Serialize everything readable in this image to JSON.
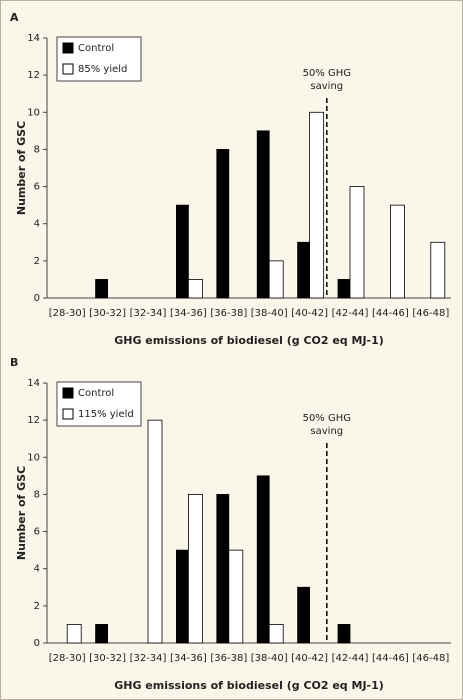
{
  "chart_data": [
    {
      "type": "bar",
      "panel": "A",
      "ylabel": "Number of GSC",
      "xlabel": "GHG emissions of biodiesel (g CO2 eq MJ-1)",
      "categories": [
        "[28-30]",
        "[30-32]",
        "[32-34]",
        "[34-36]",
        "[36-38]",
        "[38-40]",
        "[40-42]",
        "[42-44]",
        "[44-46]",
        "[46-48]"
      ],
      "series": [
        {
          "name": "Control",
          "color": "#000000",
          "values": [
            0,
            1,
            0,
            5,
            8,
            9,
            3,
            1,
            0,
            0
          ]
        },
        {
          "name": "85% yield",
          "color": "#ffffff",
          "values": [
            0,
            0,
            0,
            1,
            0,
            2,
            10,
            6,
            5,
            3
          ]
        }
      ],
      "ylim": [
        0,
        14
      ],
      "yticks": [
        0,
        2,
        4,
        6,
        8,
        10,
        12,
        14
      ],
      "annotation": [
        "50% GHG",
        "saving"
      ],
      "legend": "upper left"
    },
    {
      "type": "bar",
      "panel": "B",
      "ylabel": "Number of GSC",
      "xlabel": "GHG emissions of biodiesel (g CO2 eq MJ-1)",
      "categories": [
        "[28-30]",
        "[30-32]",
        "[32-34]",
        "[34-36]",
        "[36-38]",
        "[38-40]",
        "[40-42]",
        "[42-44]",
        "[44-46]",
        "[46-48]"
      ],
      "series": [
        {
          "name": "Control",
          "color": "#000000",
          "values": [
            0,
            1,
            0,
            5,
            8,
            9,
            3,
            1,
            0,
            0
          ]
        },
        {
          "name": "115% yield",
          "color": "#ffffff",
          "values": [
            1,
            0,
            12,
            8,
            5,
            1,
            0,
            0,
            0,
            0
          ]
        }
      ],
      "ylim": [
        0,
        14
      ],
      "yticks": [
        0,
        2,
        4,
        6,
        8,
        10,
        12,
        14
      ],
      "annotation": [
        "50% GHG",
        "saving"
      ],
      "legend": "upper left"
    }
  ]
}
